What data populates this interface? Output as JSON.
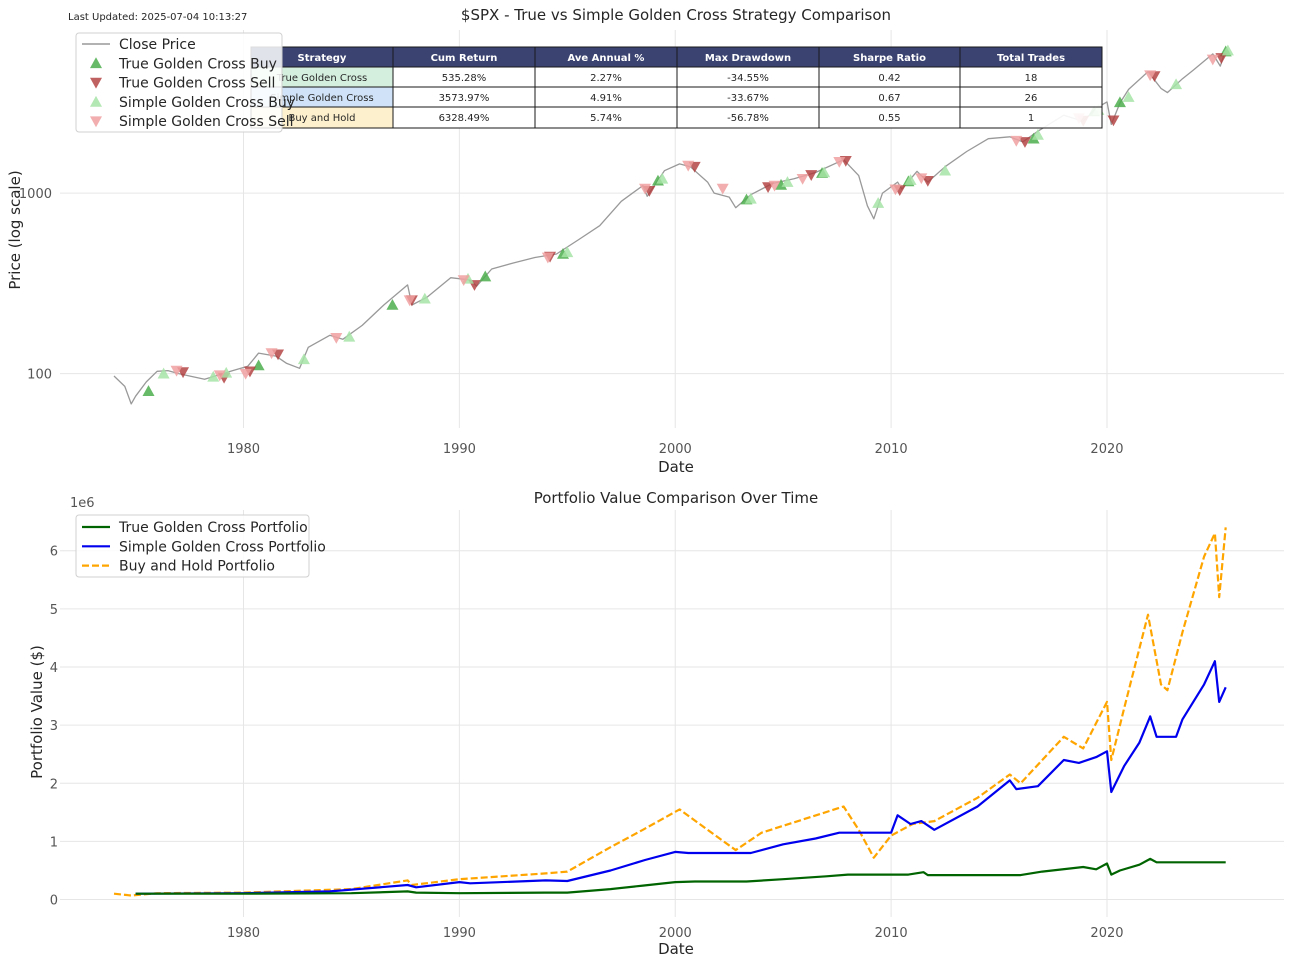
{
  "last_updated": "Last Updated: 2025-07-04 10:13:27",
  "colors": {
    "price": "#999999",
    "true_buy": "#4cae4c",
    "true_sell": "#b03a3a",
    "simple_buy": "#a6e3a6",
    "simple_sell": "#f0a0a0",
    "true_portfolio": "#006400",
    "simple_portfolio": "#0000ee",
    "bh_portfolio": "#ffa500",
    "table_header": "#3b4371",
    "row_true": "#d5efdf",
    "row_simple": "#cfe2f7",
    "row_bh": "#fdf0cc",
    "grid": "#e6e6e6"
  },
  "stats_table": {
    "headers": [
      "Strategy",
      "Cum Return",
      "Ave Annual %",
      "Max Drawdown",
      "Sharpe Ratio",
      "Total Trades"
    ],
    "rows": [
      [
        "True Golden Cross",
        "535.28%",
        "2.27%",
        "-34.55%",
        "0.42",
        "18"
      ],
      [
        "Simple Golden Cross",
        "3573.97%",
        "4.91%",
        "-33.67%",
        "0.67",
        "26"
      ],
      [
        "Buy and Hold",
        "6328.49%",
        "5.74%",
        "-56.78%",
        "0.55",
        "1"
      ]
    ]
  },
  "chart_data": [
    {
      "type": "line",
      "title": "$SPX - True vs Simple Golden Cross Strategy Comparison",
      "xlabel": "Date",
      "ylabel": "Price (log scale)",
      "y_scale": "log",
      "xlim": [
        1971.5,
        2028.2
      ],
      "ylim": [
        50,
        8000
      ],
      "xticks": [
        1980,
        1990,
        2000,
        2010,
        2020
      ],
      "yticks": [
        100,
        1000
      ],
      "xtick_labels": [
        "1980",
        "1990",
        "2000",
        "2010",
        "2020"
      ],
      "ytick_labels": [
        "100",
        "1000"
      ],
      "grid": true,
      "legend": {
        "position": "top-left",
        "entries": [
          "Close Price",
          "True Golden Cross Buy",
          "True Golden Cross Sell",
          "Simple Golden Cross Buy",
          "Simple Golden Cross Sell"
        ]
      },
      "series": [
        {
          "name": "Close Price",
          "x": [
            1974.0,
            1974.5,
            1974.8,
            1975.0,
            1975.5,
            1976.0,
            1976.5,
            1977.0,
            1977.5,
            1978.2,
            1978.8,
            1979.5,
            1980.2,
            1980.7,
            1981.5,
            1982.0,
            1982.6,
            1983.0,
            1984.0,
            1984.6,
            1985.5,
            1986.5,
            1987.6,
            1987.8,
            1988.5,
            1989.6,
            1990.5,
            1990.8,
            1991.5,
            1992.5,
            1993.5,
            1994.5,
            1995.5,
            1996.5,
            1997.5,
            1998.5,
            1998.7,
            1999.5,
            2000.2,
            2000.7,
            2001.5,
            2001.8,
            2002.5,
            2002.8,
            2003.5,
            2004.5,
            2005.5,
            2006.5,
            2007.8,
            2008.5,
            2008.9,
            2009.2,
            2009.6,
            2010.3,
            2010.5,
            2011.2,
            2011.7,
            2012.5,
            2013.5,
            2014.5,
            2015.5,
            2016.1,
            2016.8,
            2018.0,
            2018.9,
            2019.5,
            2020.0,
            2020.2,
            2020.6,
            2021.0,
            2021.9,
            2022.5,
            2022.8,
            2023.5,
            2024.0,
            2024.9,
            2025.25,
            2025.5
          ],
          "y": [
            97,
            85,
            68,
            75,
            90,
            103,
            104,
            100,
            97,
            93,
            98,
            104,
            110,
            130,
            125,
            114,
            107,
            140,
            163,
            155,
            185,
            240,
            310,
            240,
            265,
            340,
            330,
            305,
            380,
            410,
            440,
            460,
            550,
            660,
            900,
            1100,
            960,
            1330,
            1450,
            1400,
            1150,
            1000,
            950,
            830,
            980,
            1130,
            1200,
            1300,
            1530,
            1250,
            850,
            720,
            1000,
            1150,
            1050,
            1320,
            1150,
            1400,
            1700,
            2000,
            2050,
            1920,
            2200,
            2700,
            2500,
            2950,
            3200,
            2400,
            3150,
            3750,
            4700,
            3800,
            3600,
            4300,
            4800,
            5900,
            5050,
            6200
          ]
        },
        {
          "name": "True Golden Cross Buy",
          "x": [
            1975.6,
            1980.7,
            1986.9,
            1991.2,
            1994.8,
            1999.2,
            2003.3,
            2004.9,
            2006.8,
            2010.8,
            2016.6,
            2019.4,
            2020.6,
            2025.5
          ],
          "y": [
            80,
            111,
            240,
            345,
            460,
            1170,
            920,
            1110,
            1290,
            1160,
            2000,
            2830,
            3180,
            6080
          ]
        },
        {
          "name": "True Golden Cross Sell",
          "x": [
            1977.2,
            1979.1,
            1980.3,
            1981.6,
            1987.8,
            1990.7,
            1994.2,
            1998.8,
            2000.9,
            2004.3,
            2006.3,
            2007.9,
            2010.4,
            2011.7,
            2016.2,
            2018.9,
            2020.3,
            2022.2,
            2025.3
          ],
          "y": [
            102,
            95,
            103,
            128,
            255,
            310,
            445,
            1030,
            1400,
            1080,
            1260,
            1510,
            1040,
            1170,
            1920,
            2520,
            2530,
            4450,
            5600
          ]
        },
        {
          "name": "Simple Golden Cross Buy",
          "x": [
            1976.3,
            1978.6,
            1979.2,
            1982.8,
            1984.9,
            1988.4,
            1990.4,
            1995.0,
            1999.4,
            2003.5,
            2005.2,
            2006.9,
            2009.4,
            2010.9,
            2012.5,
            2016.8,
            2019.6,
            2021.0,
            2023.2,
            2025.6
          ],
          "y": [
            100,
            96,
            101,
            120,
            160,
            260,
            335,
            470,
            1200,
            930,
            1150,
            1300,
            880,
            1180,
            1330,
            2100,
            2880,
            3400,
            4000,
            6150
          ]
        },
        {
          "name": "Simple Golden Cross Sell",
          "x": [
            1976.9,
            1978.9,
            1980.1,
            1981.3,
            1984.3,
            1987.7,
            1990.2,
            1994.1,
            1998.6,
            2000.6,
            2002.2,
            2004.6,
            2005.9,
            2007.6,
            2010.2,
            2011.4,
            2015.8,
            2018.7,
            2022.0,
            2024.9
          ],
          "y": [
            104,
            98,
            100,
            130,
            158,
            255,
            330,
            440,
            1060,
            1420,
            1060,
            1100,
            1200,
            1490,
            1050,
            1210,
            1950,
            2600,
            4500,
            5500
          ]
        }
      ]
    },
    {
      "type": "line",
      "title": "Portfolio Value Comparison Over Time",
      "xlabel": "Date",
      "ylabel": "Portfolio Value ($)",
      "y_offset_label": "1e6",
      "xlim": [
        1971.5,
        2028.2
      ],
      "ylim": [
        -0.3,
        6.7
      ],
      "y_units": "millions",
      "xticks": [
        1980,
        1990,
        2000,
        2010,
        2020
      ],
      "yticks": [
        0,
        1,
        2,
        3,
        4,
        5,
        6
      ],
      "xtick_labels": [
        "1980",
        "1990",
        "2000",
        "2010",
        "2020"
      ],
      "ytick_labels": [
        "0",
        "1",
        "2",
        "3",
        "4",
        "5",
        "6"
      ],
      "grid": true,
      "legend": {
        "position": "top-left",
        "entries": [
          "True Golden Cross Portfolio",
          "Simple Golden Cross Portfolio",
          "Buy and Hold Portfolio"
        ]
      },
      "series": [
        {
          "name": "True Golden Cross Portfolio",
          "x": [
            1975.0,
            1980.0,
            1985.0,
            1987.6,
            1988.0,
            1990.0,
            1994.0,
            1995.0,
            1997.0,
            1998.5,
            2000.0,
            2000.9,
            2003.3,
            2005.0,
            2007.0,
            2008.0,
            2010.8,
            2011.5,
            2011.7,
            2016.0,
            2017.0,
            2018.9,
            2019.5,
            2020.0,
            2020.2,
            2020.6,
            2021.5,
            2022.0,
            2022.3,
            2025.2,
            2025.5
          ],
          "y": [
            0.1,
            0.1,
            0.11,
            0.14,
            0.12,
            0.11,
            0.12,
            0.12,
            0.18,
            0.24,
            0.3,
            0.31,
            0.31,
            0.35,
            0.4,
            0.43,
            0.43,
            0.47,
            0.42,
            0.42,
            0.48,
            0.56,
            0.52,
            0.62,
            0.43,
            0.5,
            0.6,
            0.7,
            0.64,
            0.64,
            0.64
          ]
        },
        {
          "name": "Simple Golden Cross Portfolio",
          "x": [
            1975.0,
            1980.0,
            1984.0,
            1987.6,
            1988.0,
            1990.0,
            1990.5,
            1994.0,
            1995.0,
            1997.0,
            1998.6,
            2000.0,
            2000.6,
            2003.5,
            2005.0,
            2006.5,
            2007.6,
            2008.5,
            2010.0,
            2010.3,
            2010.9,
            2011.4,
            2012.0,
            2014.0,
            2015.5,
            2015.8,
            2016.8,
            2018.0,
            2018.7,
            2019.5,
            2020.0,
            2020.2,
            2020.8,
            2021.5,
            2022.0,
            2022.3,
            2023.2,
            2023.5,
            2024.5,
            2025.0,
            2025.2,
            2025.5
          ],
          "y": [
            0.1,
            0.11,
            0.14,
            0.25,
            0.21,
            0.3,
            0.28,
            0.33,
            0.32,
            0.5,
            0.68,
            0.82,
            0.8,
            0.8,
            0.95,
            1.05,
            1.15,
            1.15,
            1.15,
            1.45,
            1.3,
            1.35,
            1.2,
            1.6,
            2.05,
            1.9,
            1.95,
            2.4,
            2.35,
            2.45,
            2.55,
            1.85,
            2.3,
            2.7,
            3.15,
            2.8,
            2.8,
            3.1,
            3.7,
            4.1,
            3.4,
            3.65
          ]
        },
        {
          "name": "Buy and Hold Portfolio",
          "x": [
            1974.0,
            1974.8,
            1976.0,
            1980.0,
            1985.0,
            1987.6,
            1987.8,
            1990.0,
            1994.0,
            1995.0,
            1997.0,
            1998.5,
            2000.2,
            2001.5,
            2002.8,
            2004.0,
            2007.8,
            2008.5,
            2009.2,
            2010.0,
            2011.0,
            2012.0,
            2014.0,
            2015.5,
            2016.0,
            2018.0,
            2018.9,
            2020.0,
            2020.2,
            2020.8,
            2021.9,
            2022.5,
            2022.8,
            2023.5,
            2024.5,
            2025.0,
            2025.2,
            2025.5
          ],
          "y": [
            0.1,
            0.07,
            0.11,
            0.12,
            0.18,
            0.33,
            0.25,
            0.35,
            0.45,
            0.48,
            0.9,
            1.2,
            1.55,
            1.2,
            0.85,
            1.15,
            1.6,
            1.2,
            0.72,
            1.1,
            1.3,
            1.35,
            1.75,
            2.15,
            2.0,
            2.8,
            2.6,
            3.4,
            2.4,
            3.3,
            4.9,
            3.7,
            3.6,
            4.6,
            5.9,
            6.3,
            5.2,
            6.4
          ]
        }
      ]
    }
  ]
}
